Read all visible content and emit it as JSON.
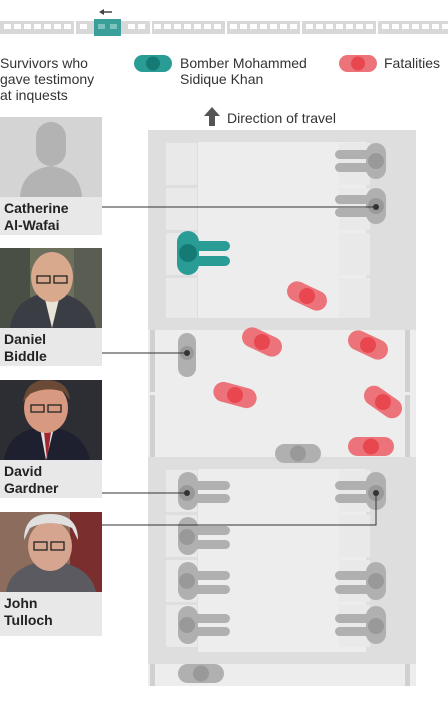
{
  "header": {
    "legend_survivors": "Survivors who gave testimony at inquests",
    "legend_bomber": "Bomber Mohammed Sidique Khan",
    "legend_fatalities": "Fatalities",
    "direction": "Direction of travel"
  },
  "survivors": [
    {
      "first": "Catherine",
      "last": "Al-Wafai",
      "photo": "silhouette-placeholder"
    },
    {
      "first": "Daniel",
      "last": "Biddle",
      "photo": "portrait-bald-man-glasses"
    },
    {
      "first": "David",
      "last": "Gardner",
      "photo": "portrait-man-glasses-tie"
    },
    {
      "first": "John",
      "last": "Tulloch",
      "photo": "portrait-grey-hair-glasses"
    }
  ],
  "colors": {
    "survivor": "#a6a6a6",
    "bomber": "#2a9c96",
    "fatality": "#e8474f",
    "carriage_floor": "#ededed",
    "seat": "#dcdcdc",
    "label_bg": "#e8e8e8"
  }
}
